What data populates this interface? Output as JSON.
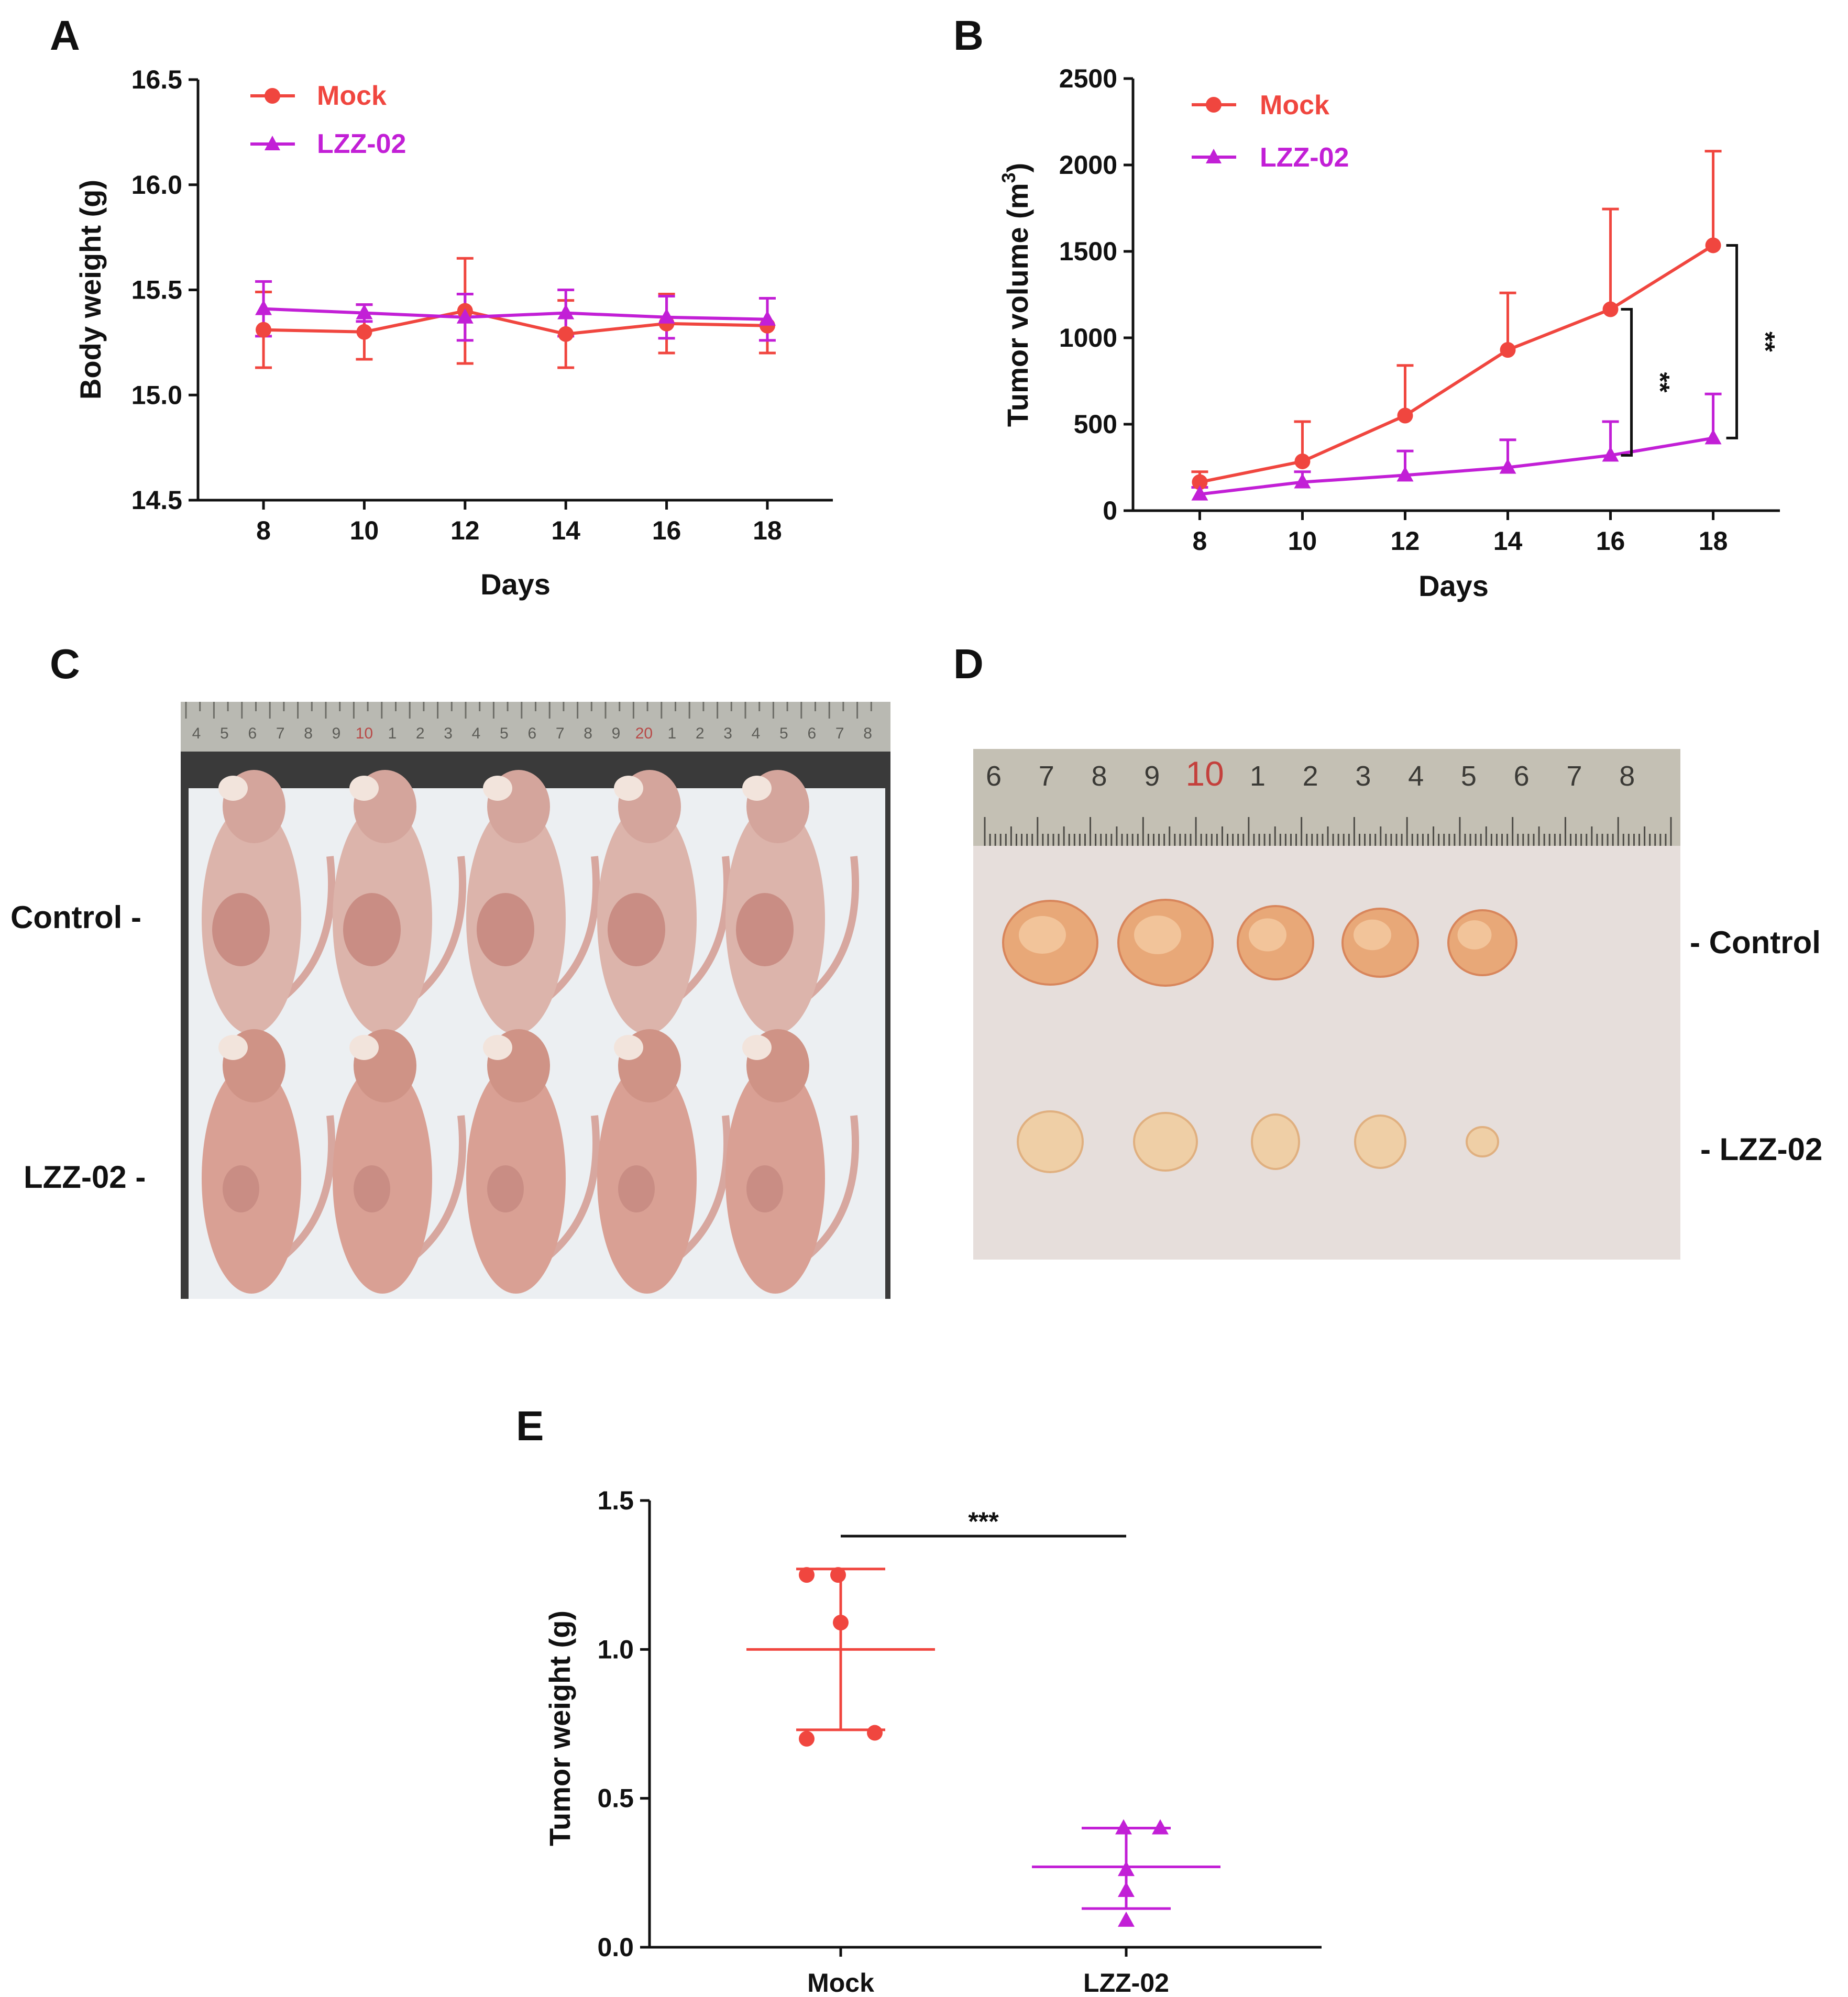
{
  "colors": {
    "mock": "#f0463f",
    "lzz": "#c21fd6",
    "axis": "#111111"
  },
  "panels": {
    "A": "A",
    "B": "B",
    "C": "C",
    "D": "D",
    "E": "E"
  },
  "photo_labels": {
    "C": {
      "top": "Control -",
      "bottom": "LZZ-02 -"
    },
    "D": {
      "top": "- Control",
      "bottom": "- LZZ-02"
    }
  },
  "ruler_C": [
    "4",
    "5",
    "6",
    "7",
    "8",
    "9",
    "10",
    "1",
    "2",
    "3",
    "4",
    "5",
    "6",
    "7",
    "8",
    "9",
    "20",
    "1",
    "2",
    "3",
    "4",
    "5",
    "6",
    "7",
    "8"
  ],
  "ruler_D": [
    "6",
    "7",
    "8",
    "9",
    "10",
    "1",
    "2",
    "3",
    "4",
    "5",
    "6",
    "7",
    "8"
  ],
  "chart_data": [
    {
      "panel": "A",
      "type": "line",
      "xlabel": "Days",
      "ylabel": "Body weight (g)",
      "x": [
        8,
        10,
        12,
        14,
        16,
        18
      ],
      "xlim": [
        6.7,
        19.3
      ],
      "ylim": [
        14.5,
        16.5
      ],
      "yticks": [
        "14.5",
        "15.0",
        "15.5",
        "16.0",
        "16.5"
      ],
      "series": [
        {
          "name": "Mock",
          "values": [
            15.31,
            15.3,
            15.4,
            15.29,
            15.34,
            15.33
          ],
          "err": [
            0.18,
            0.13,
            0.25,
            0.16,
            0.14,
            0.13
          ],
          "marker": "circle"
        },
        {
          "name": "LZZ-02",
          "values": [
            15.41,
            15.39,
            15.37,
            15.39,
            15.37,
            15.36
          ],
          "err": [
            0.13,
            0.04,
            0.11,
            0.11,
            0.1,
            0.1
          ],
          "marker": "triangle"
        }
      ],
      "legend": "top-left"
    },
    {
      "panel": "B",
      "type": "line",
      "xlabel": "Days",
      "ylabel_main": "Tumor volume (m",
      "ylabel_sup": "3",
      "ylabel_end": ")",
      "x": [
        8,
        10,
        12,
        14,
        16,
        18
      ],
      "xlim": [
        6.7,
        19.3
      ],
      "ylim": [
        0,
        2500
      ],
      "yticks": [
        "0",
        "500",
        "1000",
        "1500",
        "2000",
        "2500"
      ],
      "series": [
        {
          "name": "Mock",
          "values": [
            165,
            285,
            550,
            930,
            1165,
            1535
          ],
          "err": [
            60,
            230,
            290,
            330,
            580,
            545
          ],
          "marker": "circle"
        },
        {
          "name": "LZZ-02",
          "values": [
            95,
            165,
            205,
            250,
            320,
            420
          ],
          "err": [
            40,
            60,
            140,
            160,
            195,
            255
          ],
          "marker": "triangle"
        }
      ],
      "annotations": [
        {
          "x": 16,
          "text": "**"
        },
        {
          "x": 18,
          "text": "**"
        }
      ],
      "legend": "top-left"
    },
    {
      "panel": "E",
      "type": "scatter",
      "ylabel": "Tumor weight (g)",
      "categories": [
        "Mock",
        "LZZ-02"
      ],
      "ylim": [
        0,
        1.5
      ],
      "yticks": [
        "0.0",
        "0.5",
        "1.0",
        "1.5"
      ],
      "groups": [
        {
          "name": "Mock",
          "points": [
            1.25,
            1.25,
            1.09,
            0.7,
            0.72
          ],
          "mean": 1.0,
          "sd_low": 0.73,
          "sd_high": 1.27,
          "marker": "circle"
        },
        {
          "name": "LZZ-02",
          "points": [
            0.4,
            0.4,
            0.26,
            0.19,
            0.09
          ],
          "mean": 0.27,
          "sd_low": 0.13,
          "sd_high": 0.4,
          "marker": "triangle"
        }
      ],
      "significance": "***"
    }
  ]
}
